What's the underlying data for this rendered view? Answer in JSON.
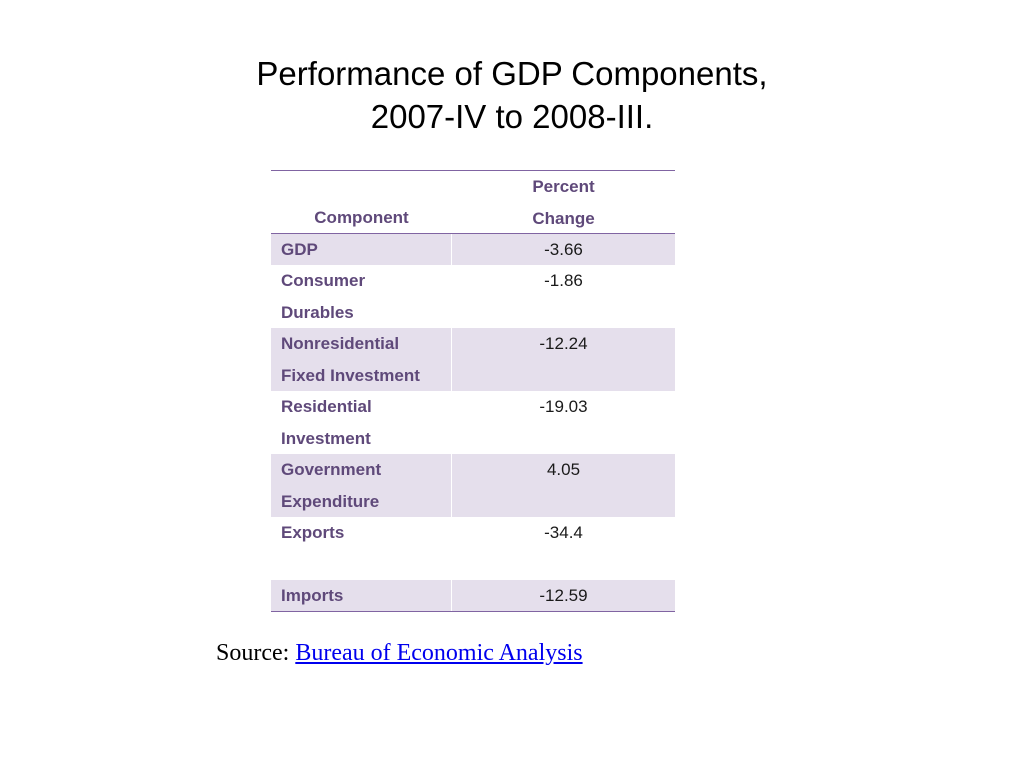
{
  "title": {
    "line1": "Performance of GDP Components,",
    "line2": "2007-IV to 2008-III."
  },
  "table": {
    "headers": {
      "component": "Component",
      "percent_change_line1": "Percent",
      "percent_change_line2": "Change"
    },
    "rows": [
      {
        "component": "GDP",
        "value": "-3.66"
      },
      {
        "component": "Consumer Durables",
        "value": "-1.86"
      },
      {
        "component": "Nonresidential Fixed Investment",
        "value": "-12.24"
      },
      {
        "component": "Residential Investment",
        "value": "-19.03"
      },
      {
        "component": "Government Expenditure",
        "value": "4.05"
      },
      {
        "component": "Exports",
        "value": "-34.4"
      },
      {
        "component": "Imports",
        "value": "-12.59"
      }
    ]
  },
  "source": {
    "label": "Source:",
    "link_text": "Bureau of Economic Analysis"
  },
  "colors": {
    "accent": "#8064a2",
    "header_text": "#5f497a",
    "shaded_row": "#e5dfec",
    "link": "#0000ee"
  }
}
